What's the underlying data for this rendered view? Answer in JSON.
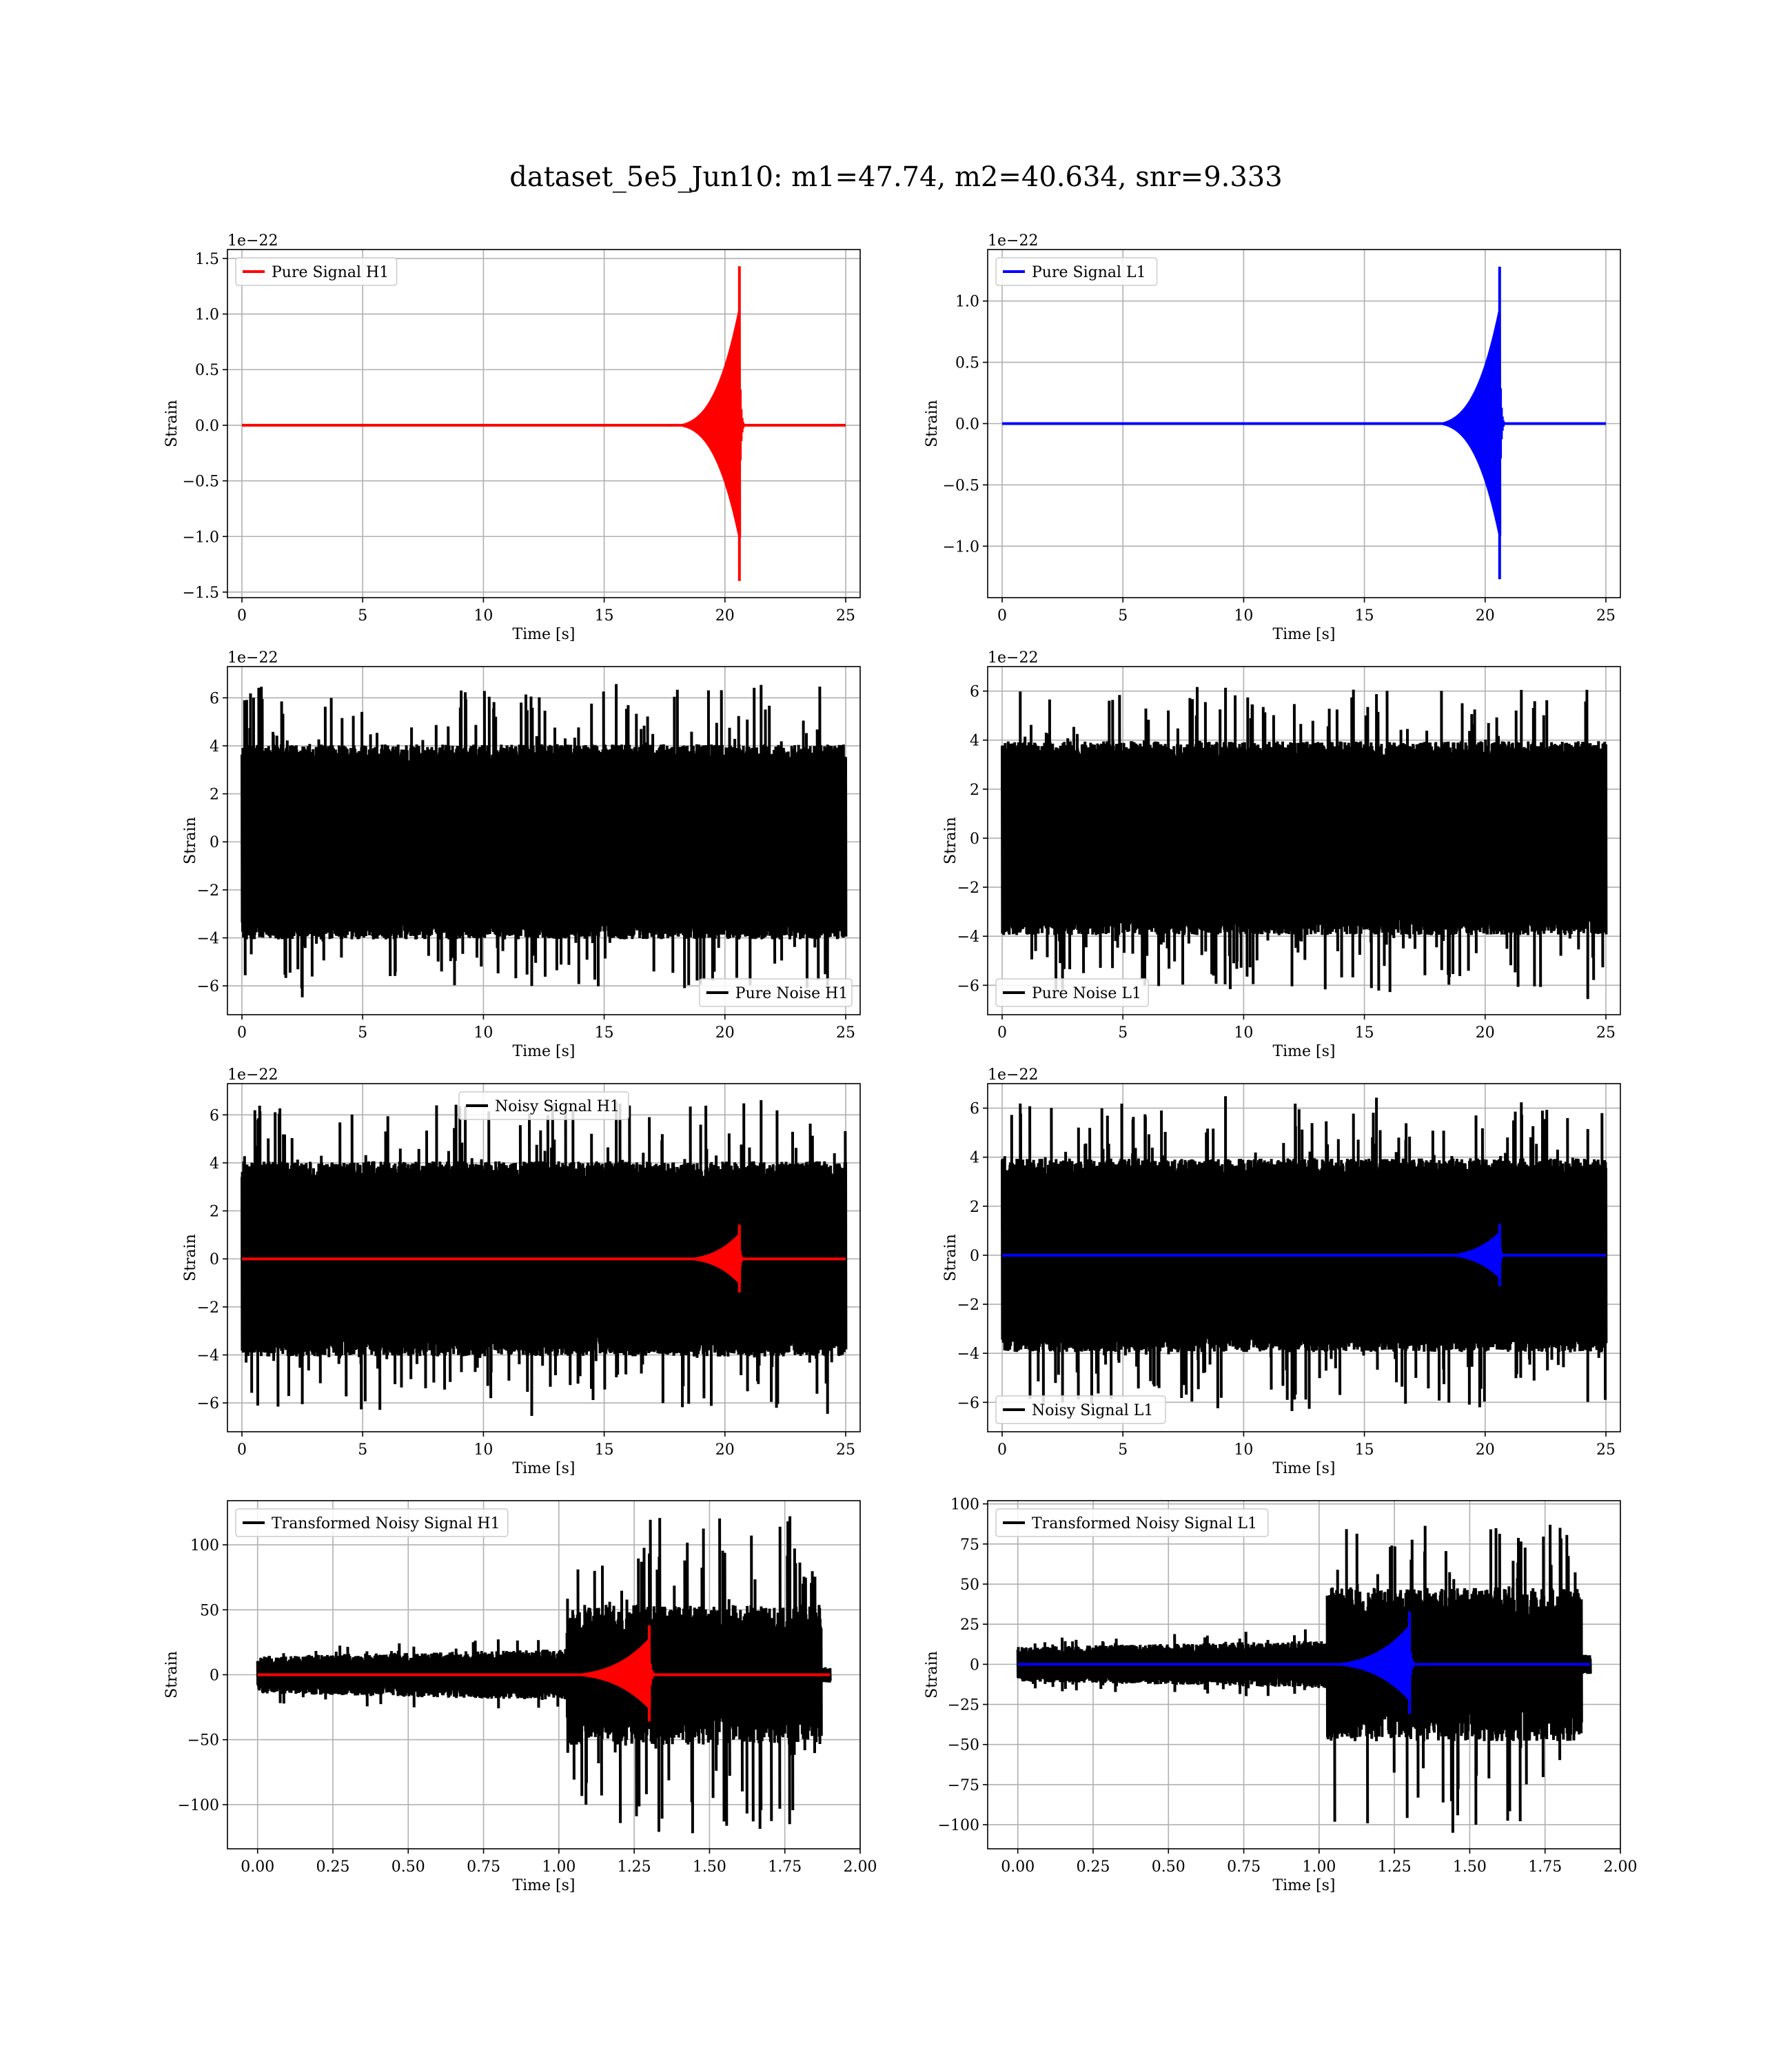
{
  "figure": {
    "title": "dataset_5e5_Jun10: m1=47.74, m2=40.634, snr=9.333"
  },
  "chart_data": [
    {
      "type": "line",
      "id": "pure-signal-h1",
      "xlabel": "Time [s]",
      "ylabel": "Strain",
      "offset_text": "1e−22",
      "xlim": [
        -0.6,
        25.6
      ],
      "ylim": [
        -1.55,
        1.58
      ],
      "xticks": [
        0,
        5,
        10,
        15,
        20,
        25
      ],
      "xtick_labels": [
        "0",
        "5",
        "10",
        "15",
        "20",
        "25"
      ],
      "yticks": [
        -1.5,
        -1.0,
        -0.5,
        0.0,
        0.5,
        1.0,
        1.5
      ],
      "ytick_labels": [
        "−1.5",
        "−1.0",
        "−0.5",
        "0.0",
        "0.5",
        "1.0",
        "1.5"
      ],
      "legend": {
        "position": "upper-left"
      },
      "series": [
        {
          "name": "Pure Signal H1",
          "role": "chirp",
          "color": "#ff0000",
          "x_start": 0,
          "x_end": 25,
          "peak_t": 20.6,
          "peak_pos": 1.43,
          "peak_neg": -1.4,
          "visible_from": 17.5
        }
      ]
    },
    {
      "type": "line",
      "id": "pure-signal-l1",
      "xlabel": "Time [s]",
      "ylabel": "Strain",
      "offset_text": "1e−22",
      "xlim": [
        -0.6,
        25.6
      ],
      "ylim": [
        -1.42,
        1.42
      ],
      "xticks": [
        0,
        5,
        10,
        15,
        20,
        25
      ],
      "xtick_labels": [
        "0",
        "5",
        "10",
        "15",
        "20",
        "25"
      ],
      "yticks": [
        -1.0,
        -0.5,
        0.0,
        0.5,
        1.0
      ],
      "ytick_labels": [
        "−1.0",
        "−0.5",
        "0.0",
        "0.5",
        "1.0"
      ],
      "legend": {
        "position": "upper-left"
      },
      "series": [
        {
          "name": "Pure Signal L1",
          "role": "chirp",
          "color": "#0000ff",
          "x_start": 0,
          "x_end": 25,
          "peak_t": 20.6,
          "peak_pos": 1.28,
          "peak_neg": -1.27,
          "visible_from": 17.5
        }
      ]
    },
    {
      "type": "line",
      "id": "pure-noise-h1",
      "xlabel": "Time [s]",
      "ylabel": "Strain",
      "offset_text": "1e−22",
      "xlim": [
        -0.6,
        25.6
      ],
      "ylim": [
        -7.2,
        7.3
      ],
      "xticks": [
        0,
        5,
        10,
        15,
        20,
        25
      ],
      "xtick_labels": [
        "0",
        "5",
        "10",
        "15",
        "20",
        "25"
      ],
      "yticks": [
        -6,
        -4,
        -2,
        0,
        2,
        4,
        6
      ],
      "ytick_labels": [
        "−6",
        "−4",
        "−2",
        "0",
        "2",
        "4",
        "6"
      ],
      "legend": {
        "position": "lower-right"
      },
      "series": [
        {
          "name": "Pure Noise H1",
          "role": "noise",
          "color": "#000000",
          "x_start": 0,
          "x_end": 25,
          "core": 3.6,
          "max": 6.8,
          "min": -6.6
        }
      ]
    },
    {
      "type": "line",
      "id": "pure-noise-l1",
      "xlabel": "Time [s]",
      "ylabel": "Strain",
      "offset_text": "1e−22",
      "xlim": [
        -0.6,
        25.6
      ],
      "ylim": [
        -7.2,
        7.0
      ],
      "xticks": [
        0,
        5,
        10,
        15,
        20,
        25
      ],
      "xtick_labels": [
        "0",
        "5",
        "10",
        "15",
        "20",
        "25"
      ],
      "yticks": [
        -6,
        -4,
        -2,
        0,
        2,
        4,
        6
      ],
      "ytick_labels": [
        "−6",
        "−4",
        "−2",
        "0",
        "2",
        "4",
        "6"
      ],
      "legend": {
        "position": "lower-left"
      },
      "series": [
        {
          "name": "Pure Noise L1",
          "role": "noise",
          "color": "#000000",
          "x_start": 0,
          "x_end": 25,
          "core": 3.5,
          "max": 6.5,
          "min": -6.6
        }
      ]
    },
    {
      "type": "line",
      "id": "noisy-signal-h1",
      "xlabel": "Time [s]",
      "ylabel": "Strain",
      "offset_text": "1e−22",
      "xlim": [
        -0.6,
        25.6
      ],
      "ylim": [
        -7.2,
        7.3
      ],
      "xticks": [
        0,
        5,
        10,
        15,
        20,
        25
      ],
      "xtick_labels": [
        "0",
        "5",
        "10",
        "15",
        "20",
        "25"
      ],
      "yticks": [
        -6,
        -4,
        -2,
        0,
        2,
        4,
        6
      ],
      "ytick_labels": [
        "−6",
        "−4",
        "−2",
        "0",
        "2",
        "4",
        "6"
      ],
      "legend": {
        "position": "upper-center"
      },
      "series": [
        {
          "name": "Noisy Signal H1",
          "role": "noise",
          "color": "#000000",
          "x_start": 0,
          "x_end": 25,
          "core": 3.6,
          "max": 6.8,
          "min": -6.6
        },
        {
          "role": "chirp",
          "color": "#ff0000",
          "x_start": 0,
          "x_end": 25,
          "peak_t": 20.6,
          "peak_pos": 1.43,
          "peak_neg": -1.4,
          "visible_from": 17.5
        }
      ]
    },
    {
      "type": "line",
      "id": "noisy-signal-l1",
      "xlabel": "Time [s]",
      "ylabel": "Strain",
      "offset_text": "1e−22",
      "xlim": [
        -0.6,
        25.6
      ],
      "ylim": [
        -7.2,
        7.0
      ],
      "xticks": [
        0,
        5,
        10,
        15,
        20,
        25
      ],
      "xtick_labels": [
        "0",
        "5",
        "10",
        "15",
        "20",
        "25"
      ],
      "yticks": [
        -6,
        -4,
        -2,
        0,
        2,
        4,
        6
      ],
      "ytick_labels": [
        "−6",
        "−4",
        "−2",
        "0",
        "2",
        "4",
        "6"
      ],
      "legend": {
        "position": "lower-left"
      },
      "series": [
        {
          "name": "Noisy Signal L1",
          "role": "noise",
          "color": "#000000",
          "x_start": 0,
          "x_end": 25,
          "core": 3.5,
          "max": 6.5,
          "min": -6.6
        },
        {
          "role": "chirp",
          "color": "#0000ff",
          "x_start": 0,
          "x_end": 25,
          "peak_t": 20.6,
          "peak_pos": 1.28,
          "peak_neg": -1.27,
          "visible_from": 17.5
        }
      ]
    },
    {
      "type": "line",
      "id": "transformed-h1",
      "xlabel": "Time [s]",
      "ylabel": "Strain",
      "offset_text": "",
      "xlim": [
        -0.1,
        2.0
      ],
      "ylim": [
        -134,
        134
      ],
      "xticks": [
        0,
        0.25,
        0.5,
        0.75,
        1.0,
        1.25,
        1.5,
        1.75,
        2.0
      ],
      "xtick_labels": [
        "0.00",
        "0.25",
        "0.50",
        "0.75",
        "1.00",
        "1.25",
        "1.50",
        "1.75",
        "2.00"
      ],
      "yticks": [
        -100,
        -50,
        0,
        50,
        100
      ],
      "ytick_labels": [
        "−100",
        "−50",
        "0",
        "50",
        "100"
      ],
      "legend": {
        "position": "upper-left"
      },
      "series": [
        {
          "name": "Transformed Noisy Signal H1",
          "role": "whitened",
          "color": "#000000",
          "x_start": 0,
          "x_end": 1.9,
          "early": 12,
          "late": 45,
          "max": 122,
          "min": -122
        },
        {
          "role": "chirp",
          "color": "#ff0000",
          "x_start": 0,
          "x_end": 1.9,
          "peak_t": 1.3,
          "peak_pos": 38,
          "peak_neg": -36,
          "visible_from": 0.95
        }
      ]
    },
    {
      "type": "line",
      "id": "transformed-l1",
      "xlabel": "Time [s]",
      "ylabel": "Strain",
      "offset_text": "",
      "xlim": [
        -0.1,
        2.0
      ],
      "ylim": [
        -115,
        102
      ],
      "xticks": [
        0,
        0.25,
        0.5,
        0.75,
        1.0,
        1.25,
        1.5,
        1.75,
        2.0
      ],
      "xtick_labels": [
        "0.00",
        "0.25",
        "0.50",
        "0.75",
        "1.00",
        "1.25",
        "1.50",
        "1.75",
        "2.00"
      ],
      "yticks": [
        -100,
        -75,
        -50,
        -25,
        0,
        25,
        50,
        75,
        100
      ],
      "ytick_labels": [
        "−100",
        "−75",
        "−50",
        "−25",
        "0",
        "25",
        "50",
        "75",
        "100"
      ],
      "legend": {
        "position": "upper-left"
      },
      "series": [
        {
          "name": "Transformed Noisy Signal L1",
          "role": "whitened",
          "color": "#000000",
          "x_start": 0,
          "x_end": 1.9,
          "early": 9,
          "late": 40,
          "max": 87,
          "min": -105
        },
        {
          "role": "chirp",
          "color": "#0000ff",
          "x_start": 0,
          "x_end": 1.9,
          "peak_t": 1.3,
          "peak_pos": 33,
          "peak_neg": -31,
          "visible_from": 0.95
        }
      ]
    }
  ]
}
